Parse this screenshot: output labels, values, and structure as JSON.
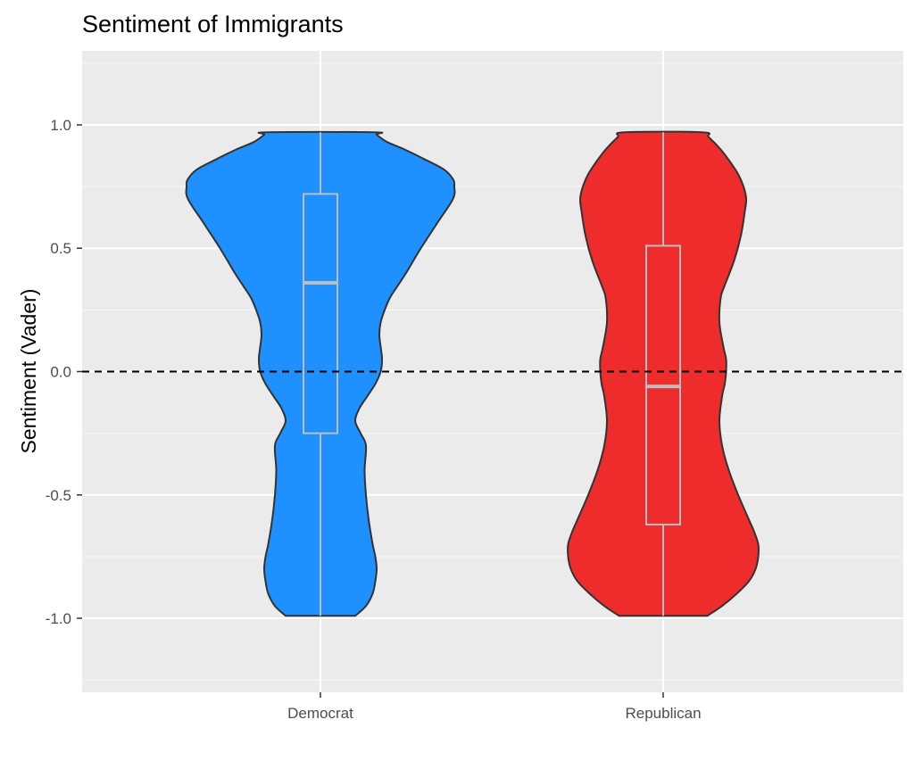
{
  "chart_data": {
    "type": "violin",
    "title": "Sentiment of Immigrants",
    "xlabel": "",
    "ylabel": "Sentiment (Vader)",
    "categories": [
      "Democrat",
      "Republican"
    ],
    "y_ticks": [
      "-1.0",
      "-0.5",
      "0.0",
      "0.5",
      "1.0"
    ],
    "y_tick_values": [
      -1.0,
      -0.5,
      0.0,
      0.5,
      1.0
    ],
    "ylim": [
      -1.3,
      1.3
    ],
    "grid": true,
    "reference_line": {
      "y": 0.0,
      "style": "dashed"
    },
    "series": [
      {
        "category": "Democrat",
        "color": "#1e90ff",
        "box": {
          "q1": -0.25,
          "median": 0.36,
          "q3": 0.72,
          "whisker_low": -0.99,
          "whisker_high": 0.97
        },
        "density": [
          [
            -0.99,
            0.26
          ],
          [
            -0.95,
            0.34
          ],
          [
            -0.9,
            0.39
          ],
          [
            -0.85,
            0.41
          ],
          [
            -0.8,
            0.42
          ],
          [
            -0.75,
            0.41
          ],
          [
            -0.7,
            0.39
          ],
          [
            -0.6,
            0.36
          ],
          [
            -0.5,
            0.34
          ],
          [
            -0.4,
            0.33
          ],
          [
            -0.3,
            0.34
          ],
          [
            -0.25,
            0.3
          ],
          [
            -0.2,
            0.26
          ],
          [
            -0.15,
            0.29
          ],
          [
            -0.1,
            0.35
          ],
          [
            -0.05,
            0.41
          ],
          [
            0.0,
            0.45
          ],
          [
            0.05,
            0.46
          ],
          [
            0.1,
            0.45
          ],
          [
            0.15,
            0.44
          ],
          [
            0.2,
            0.45
          ],
          [
            0.25,
            0.48
          ],
          [
            0.3,
            0.52
          ],
          [
            0.35,
            0.58
          ],
          [
            0.4,
            0.64
          ],
          [
            0.5,
            0.75
          ],
          [
            0.6,
            0.87
          ],
          [
            0.7,
            0.99
          ],
          [
            0.75,
            1.0
          ],
          [
            0.78,
            0.99
          ],
          [
            0.82,
            0.92
          ],
          [
            0.86,
            0.78
          ],
          [
            0.9,
            0.63
          ],
          [
            0.93,
            0.5
          ],
          [
            0.96,
            0.42
          ],
          [
            0.97,
            0.4
          ]
        ]
      },
      {
        "category": "Republican",
        "color": "#ee2c2c",
        "box": {
          "q1": -0.62,
          "median": -0.06,
          "q3": 0.51,
          "whisker_low": -0.99,
          "whisker_high": 0.97
        },
        "density": [
          [
            -0.99,
            0.33
          ],
          [
            -0.95,
            0.44
          ],
          [
            -0.9,
            0.55
          ],
          [
            -0.85,
            0.64
          ],
          [
            -0.8,
            0.69
          ],
          [
            -0.75,
            0.71
          ],
          [
            -0.7,
            0.71
          ],
          [
            -0.65,
            0.68
          ],
          [
            -0.6,
            0.64
          ],
          [
            -0.5,
            0.56
          ],
          [
            -0.4,
            0.49
          ],
          [
            -0.3,
            0.44
          ],
          [
            -0.2,
            0.42
          ],
          [
            -0.1,
            0.44
          ],
          [
            -0.05,
            0.46
          ],
          [
            0.0,
            0.47
          ],
          [
            0.05,
            0.47
          ],
          [
            0.1,
            0.45
          ],
          [
            0.2,
            0.42
          ],
          [
            0.3,
            0.43
          ],
          [
            0.35,
            0.46
          ],
          [
            0.45,
            0.53
          ],
          [
            0.55,
            0.58
          ],
          [
            0.65,
            0.61
          ],
          [
            0.7,
            0.62
          ],
          [
            0.75,
            0.6
          ],
          [
            0.8,
            0.56
          ],
          [
            0.85,
            0.5
          ],
          [
            0.9,
            0.43
          ],
          [
            0.95,
            0.34
          ],
          [
            0.97,
            0.29
          ]
        ]
      }
    ]
  }
}
